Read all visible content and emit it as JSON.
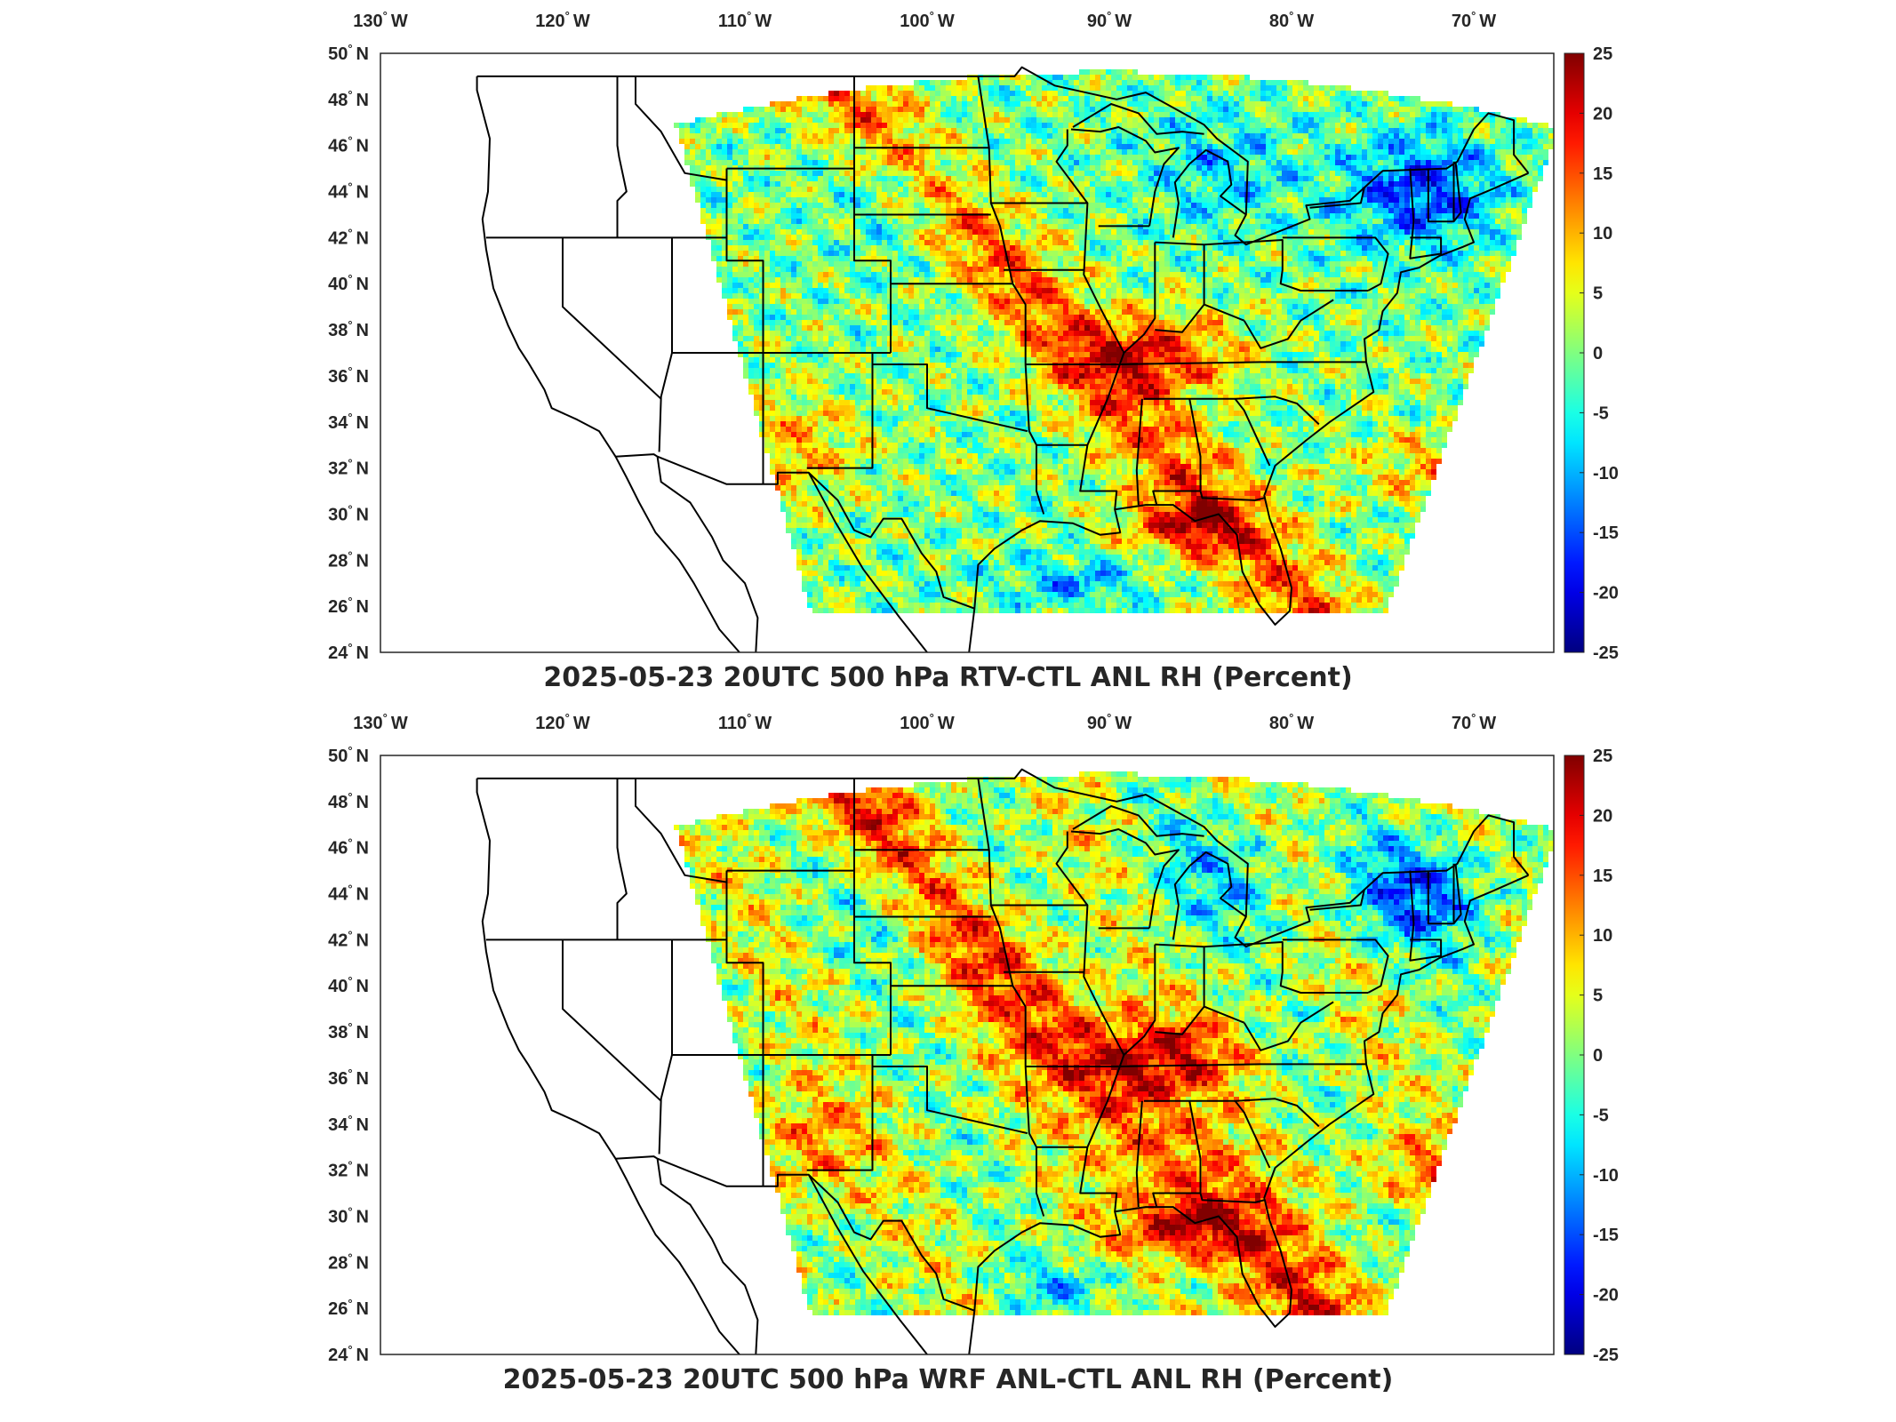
{
  "panels": [
    {
      "title": "2025-05-23 20UTC 500 hPa RTV-CTL ANL RH (Percent)",
      "variant": "rtv"
    },
    {
      "title": "2025-05-23 20UTC 500 hPa WRF ANL-CTL ANL RH (Percent)",
      "variant": "wrf"
    }
  ],
  "lon_labels": [
    "130",
    "120",
    "110",
    "100",
    "90",
    "80",
    "70"
  ],
  "lon_suffix": "W",
  "lat_labels": [
    "50",
    "48",
    "46",
    "44",
    "42",
    "40",
    "38",
    "36",
    "34",
    "32",
    "30",
    "28",
    "26",
    "24"
  ],
  "lat_suffix": "N",
  "degree_symbol": "°",
  "colorbar": {
    "ticks": [
      "25",
      "20",
      "15",
      "10",
      "5",
      "0",
      "-5",
      "-10",
      "-15",
      "-20",
      "-25"
    ],
    "range": [
      -25,
      25
    ],
    "colormap": "jet",
    "colors": [
      "#00008f",
      "#0000ff",
      "#0080ff",
      "#00ffff",
      "#80ff80",
      "#ffff00",
      "#ff8000",
      "#ff0000",
      "#800000"
    ]
  }
}
